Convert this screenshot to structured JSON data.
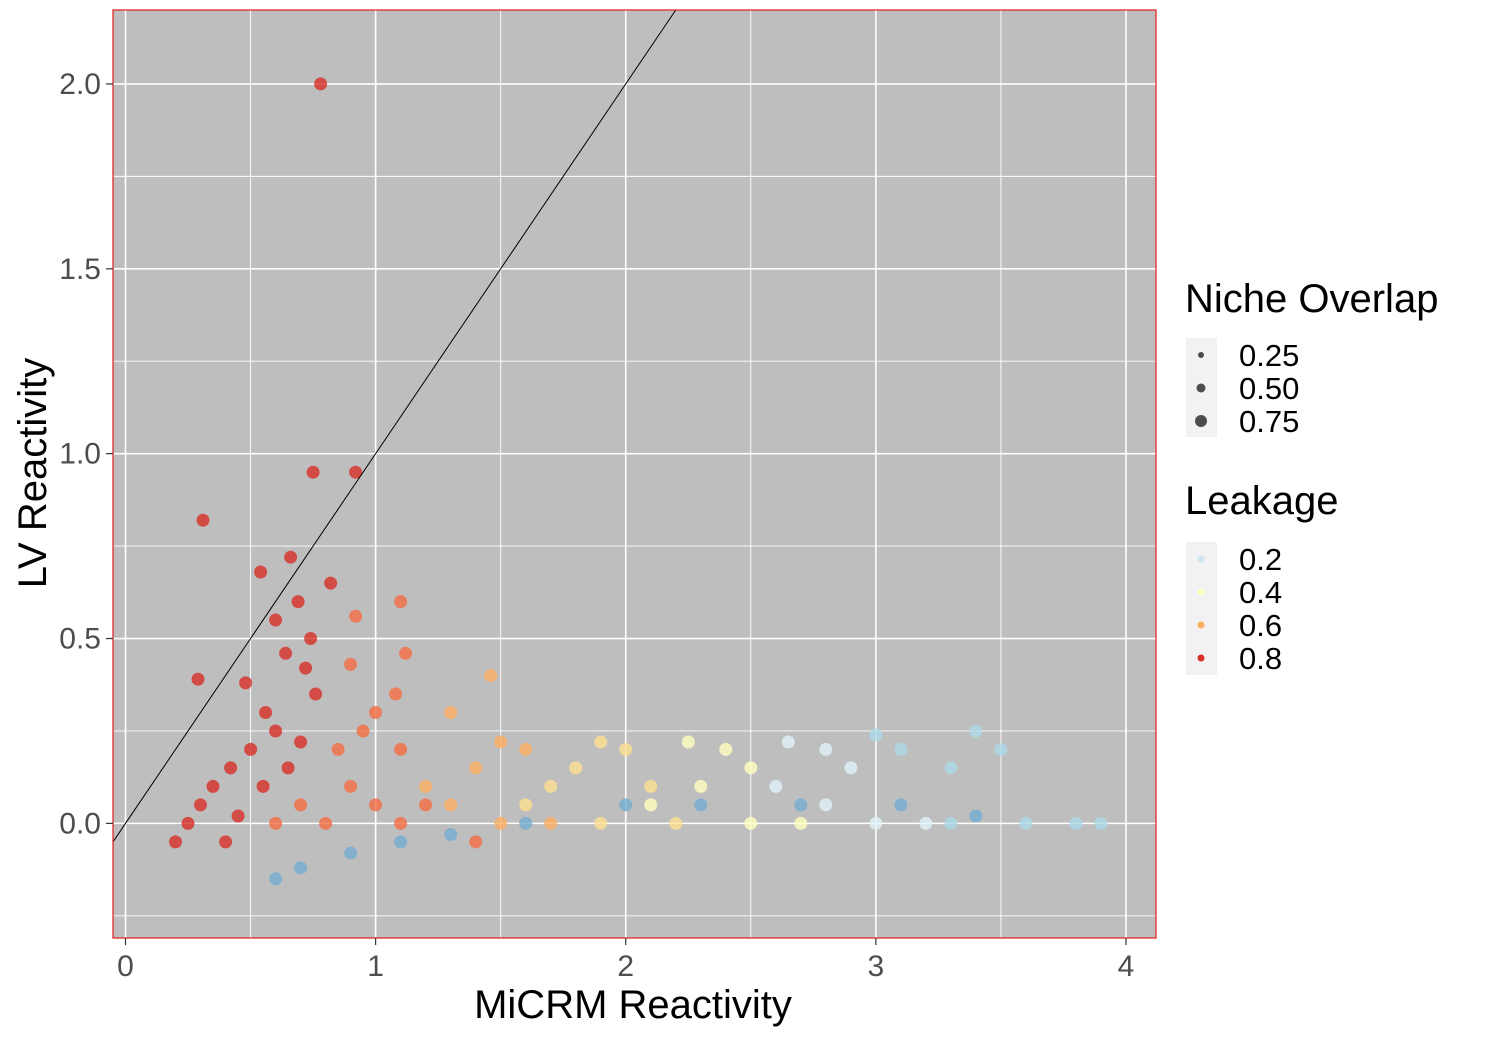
{
  "chart_data": {
    "type": "scatter",
    "xlabel": "MiCRM Reactivity",
    "ylabel": "LV Reactivity",
    "xlim": [
      -0.05,
      4.12
    ],
    "ylim": [
      -0.31,
      2.2
    ],
    "x_ticks": [
      0,
      1,
      2,
      3,
      4
    ],
    "x_tick_labels": [
      "0",
      "1",
      "2",
      "3",
      "4"
    ],
    "y_ticks": [
      0.0,
      0.5,
      1.0,
      1.5,
      2.0
    ],
    "y_tick_labels": [
      "0.0",
      "0.5",
      "1.0",
      "1.5",
      "2.0"
    ],
    "grid": true,
    "panel_background": "#bebebe",
    "panel_border_color": "#e31a1c",
    "grid_color": "#ffffff",
    "reference_line": {
      "type": "identity",
      "slope": 1,
      "intercept": 0,
      "color": "#000000"
    },
    "legend_position": "right",
    "size_legend": {
      "title": "Niche Overlap",
      "entries": [
        {
          "label": "0.25",
          "value": 0.25
        },
        {
          "label": "0.50",
          "value": 0.5
        },
        {
          "label": "0.75",
          "value": 0.75
        }
      ]
    },
    "color_legend": {
      "title": "Leakage",
      "palette": "RdYlBu (reversed)",
      "entries": [
        {
          "label": "0.2",
          "value": 0.2,
          "color": "#d1e5f0"
        },
        {
          "label": "0.4",
          "value": 0.4,
          "color": "#ffffbf"
        },
        {
          "label": "0.6",
          "value": 0.6,
          "color": "#fdae61"
        },
        {
          "label": "0.8",
          "value": 0.8,
          "color": "#d73027"
        }
      ]
    },
    "series": [
      {
        "leakage": 0.9,
        "color": "#d73027",
        "points": [
          [
            0.78,
            2.0
          ],
          [
            0.75,
            0.95
          ],
          [
            0.92,
            0.95
          ],
          [
            0.31,
            0.82
          ],
          [
            0.54,
            0.68
          ],
          [
            0.66,
            0.72
          ],
          [
            0.6,
            0.55
          ],
          [
            0.69,
            0.6
          ],
          [
            0.82,
            0.65
          ],
          [
            0.64,
            0.46
          ],
          [
            0.74,
            0.5
          ],
          [
            0.48,
            0.38
          ],
          [
            0.29,
            0.39
          ],
          [
            0.72,
            0.42
          ],
          [
            0.76,
            0.35
          ],
          [
            0.56,
            0.3
          ],
          [
            0.6,
            0.25
          ],
          [
            0.7,
            0.22
          ],
          [
            0.5,
            0.2
          ],
          [
            0.42,
            0.15
          ],
          [
            0.35,
            0.1
          ],
          [
            0.3,
            0.05
          ],
          [
            0.25,
            0.0
          ],
          [
            0.2,
            -0.05
          ],
          [
            0.4,
            -0.05
          ],
          [
            0.45,
            0.02
          ],
          [
            0.55,
            0.1
          ],
          [
            0.65,
            0.15
          ]
        ]
      },
      {
        "leakage": 0.75,
        "color": "#f46d43",
        "points": [
          [
            1.1,
            0.6
          ],
          [
            0.92,
            0.56
          ],
          [
            1.12,
            0.46
          ],
          [
            0.9,
            0.43
          ],
          [
            1.08,
            0.35
          ],
          [
            1.0,
            0.3
          ],
          [
            0.95,
            0.25
          ],
          [
            0.85,
            0.2
          ],
          [
            1.1,
            0.2
          ],
          [
            0.9,
            0.1
          ],
          [
            1.0,
            0.05
          ],
          [
            0.7,
            0.05
          ],
          [
            0.6,
            0.0
          ],
          [
            0.8,
            0.0
          ],
          [
            1.1,
            0.0
          ],
          [
            1.2,
            0.05
          ],
          [
            1.4,
            -0.05
          ]
        ]
      },
      {
        "leakage": 0.6,
        "color": "#fdae61",
        "points": [
          [
            1.46,
            0.4
          ],
          [
            1.3,
            0.3
          ],
          [
            1.5,
            0.22
          ],
          [
            1.6,
            0.2
          ],
          [
            1.4,
            0.15
          ],
          [
            1.3,
            0.05
          ],
          [
            1.5,
            0.0
          ],
          [
            1.7,
            0.0
          ],
          [
            1.2,
            0.1
          ]
        ]
      },
      {
        "leakage": 0.5,
        "color": "#fee090",
        "points": [
          [
            1.9,
            0.22
          ],
          [
            2.0,
            0.2
          ],
          [
            1.8,
            0.15
          ],
          [
            1.7,
            0.1
          ],
          [
            2.1,
            0.1
          ],
          [
            1.9,
            0.0
          ],
          [
            2.2,
            0.0
          ],
          [
            1.6,
            0.05
          ]
        ]
      },
      {
        "leakage": 0.4,
        "color": "#ffffbf",
        "points": [
          [
            2.25,
            0.22
          ],
          [
            2.4,
            0.2
          ],
          [
            2.5,
            0.15
          ],
          [
            2.3,
            0.1
          ],
          [
            2.5,
            0.0
          ],
          [
            2.7,
            0.0
          ],
          [
            2.1,
            0.05
          ]
        ]
      },
      {
        "leakage": 0.3,
        "color": "#e0f3f8",
        "points": [
          [
            2.65,
            0.22
          ],
          [
            2.8,
            0.2
          ],
          [
            2.9,
            0.15
          ],
          [
            2.6,
            0.1
          ],
          [
            3.0,
            0.0
          ],
          [
            3.2,
            0.0
          ],
          [
            2.8,
            0.05
          ]
        ]
      },
      {
        "leakage": 0.2,
        "color": "#abd9e9",
        "points": [
          [
            3.0,
            0.24
          ],
          [
            3.1,
            0.2
          ],
          [
            3.3,
            0.15
          ],
          [
            3.4,
            0.25
          ],
          [
            3.5,
            0.2
          ],
          [
            3.3,
            0.0
          ],
          [
            3.6,
            0.0
          ],
          [
            3.8,
            0.0
          ],
          [
            3.9,
            0.0
          ]
        ]
      },
      {
        "leakage": 0.1,
        "color": "#74add1",
        "points": [
          [
            0.6,
            -0.15
          ],
          [
            0.7,
            -0.12
          ],
          [
            0.9,
            -0.08
          ],
          [
            1.1,
            -0.05
          ],
          [
            1.3,
            -0.03
          ],
          [
            1.6,
            0.0
          ],
          [
            2.0,
            0.05
          ],
          [
            2.3,
            0.05
          ],
          [
            2.7,
            0.05
          ],
          [
            3.1,
            0.05
          ],
          [
            3.4,
            0.02
          ]
        ]
      }
    ]
  },
  "legend_keys": {
    "size_key_background": "#f2f2f2",
    "size_key_point_color": "#4d4d4d"
  }
}
